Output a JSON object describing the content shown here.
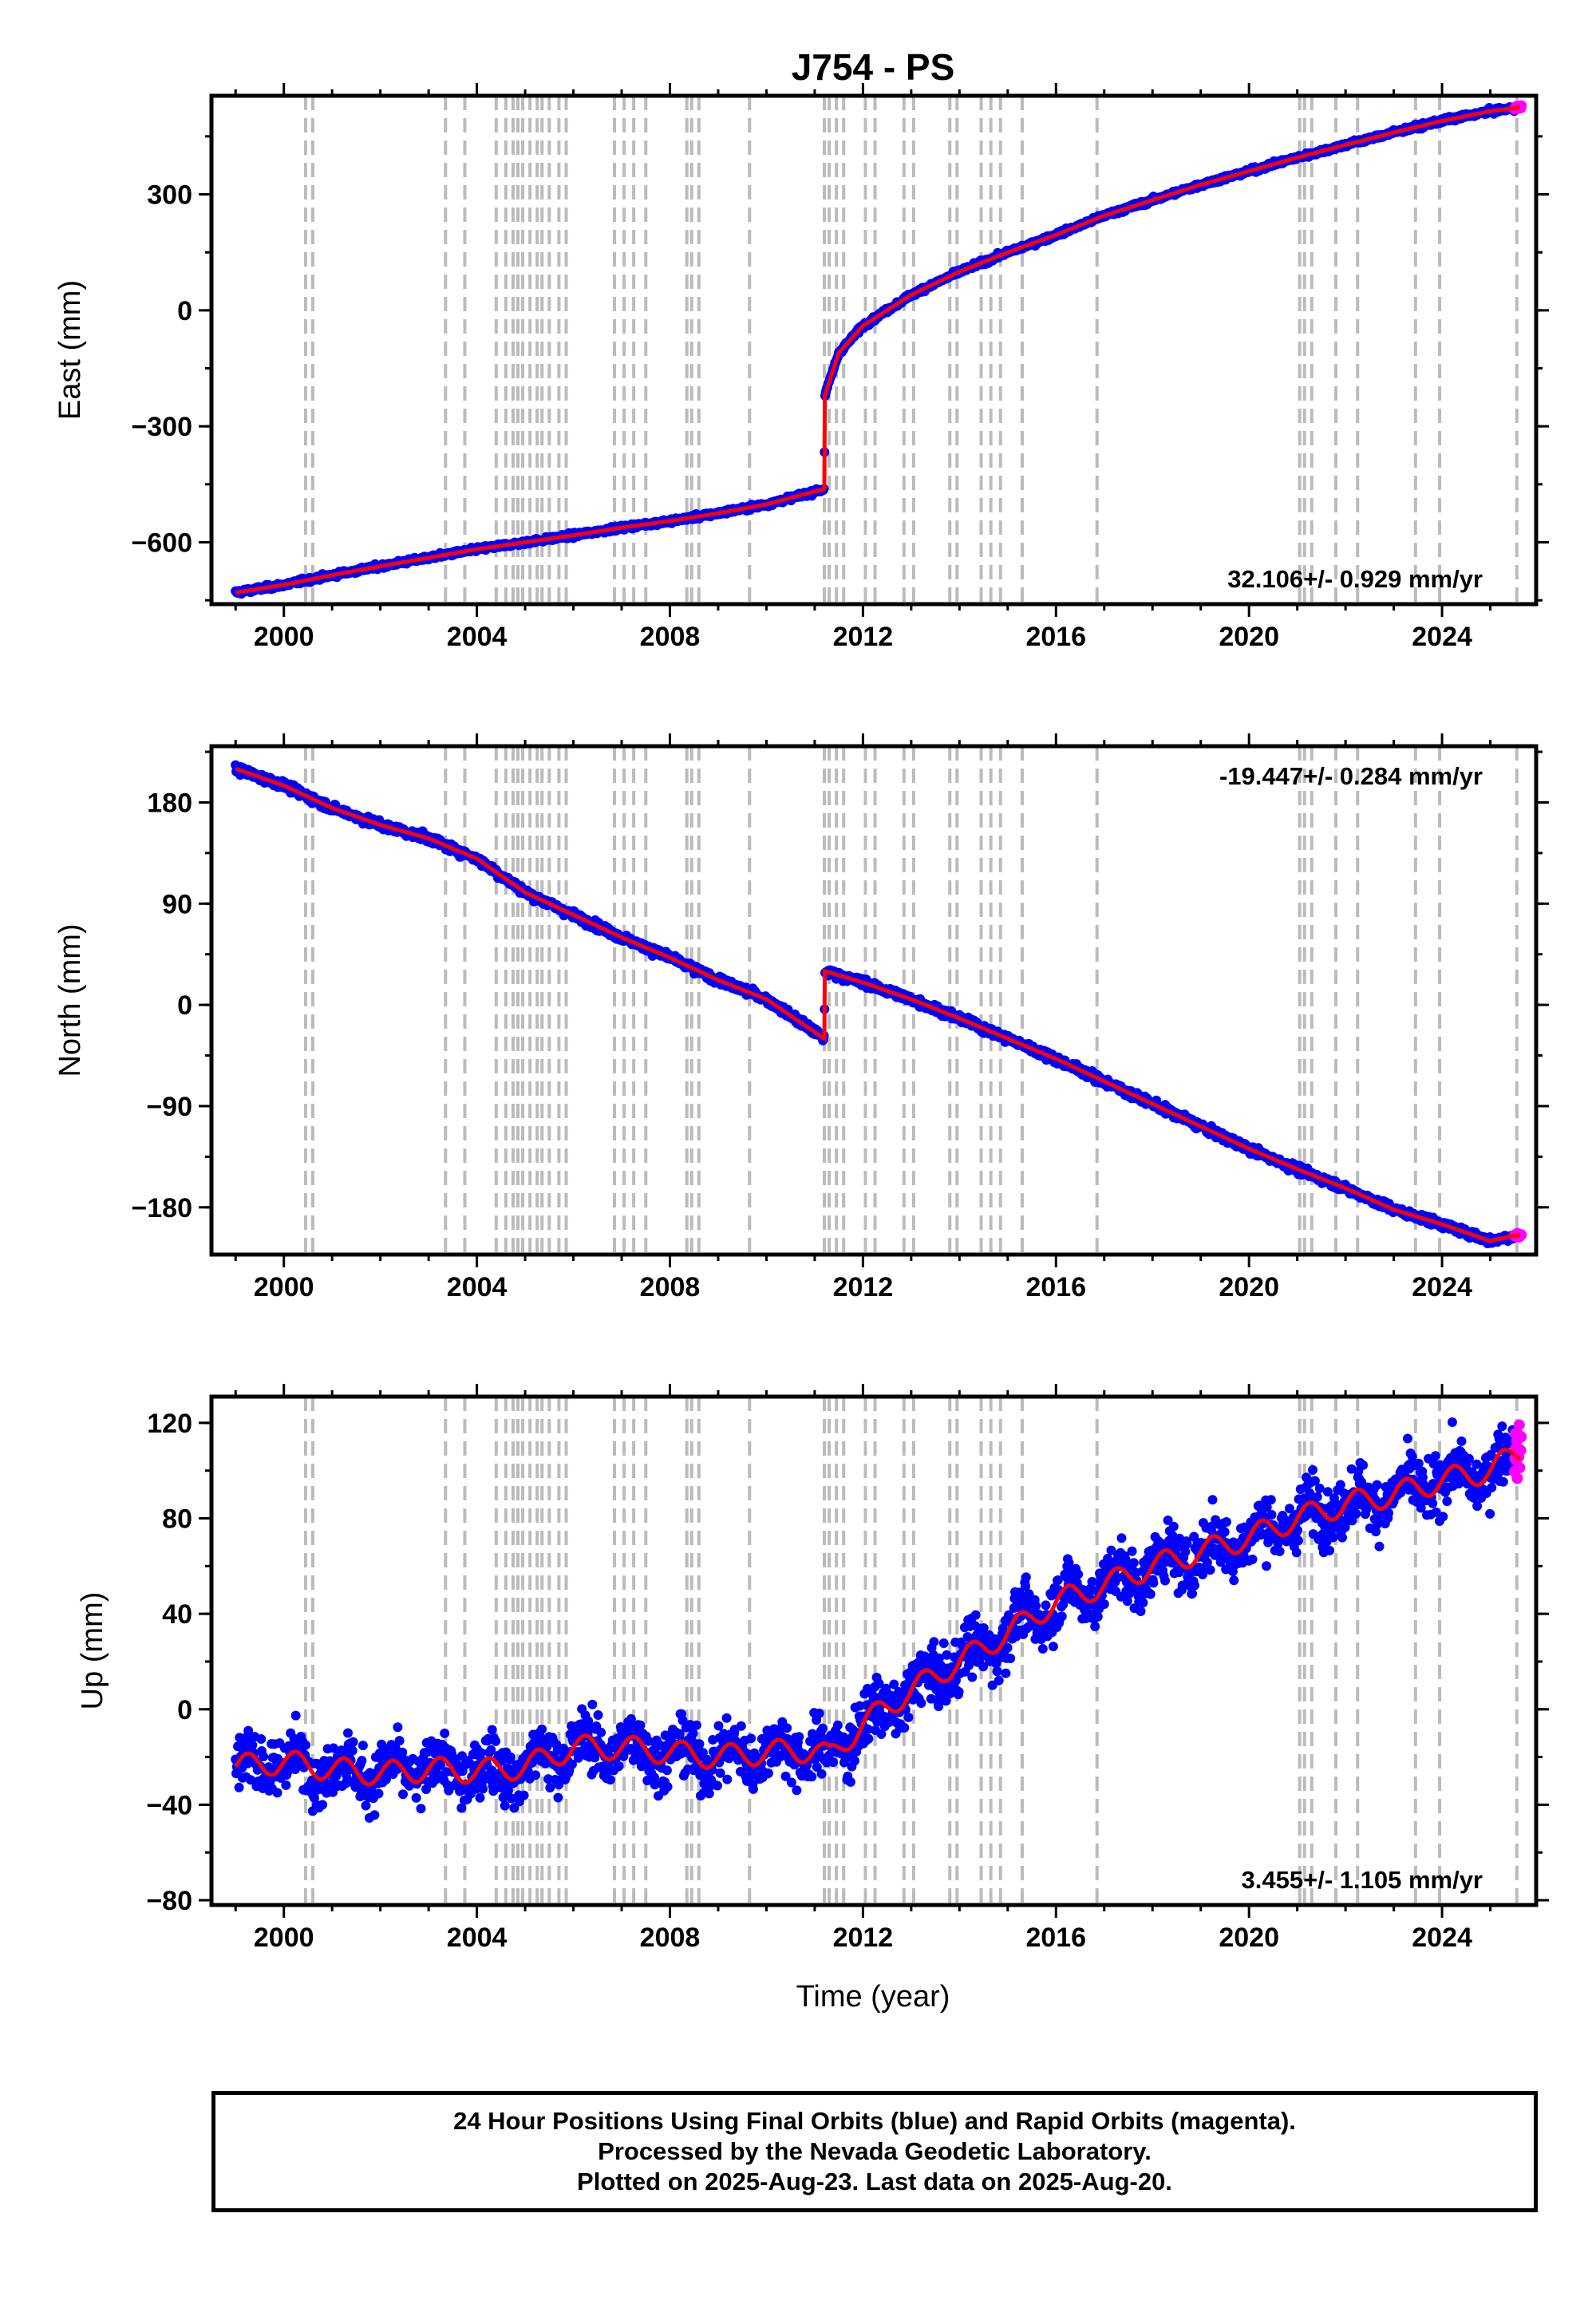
{
  "chart_data": {
    "type": "scatter",
    "title": "J754 - PS",
    "xlabel": "Time (year)",
    "xlim": [
      1998.5,
      2025.95
    ],
    "x_ticks": [
      "2000",
      "2004",
      "2008",
      "2012",
      "2016",
      "2020",
      "2024"
    ],
    "grid": false,
    "colors": {
      "final": "#0000ff",
      "rapid": "#ff00ff",
      "model": "#ff0000",
      "breaks": "#bbbbbb"
    },
    "break_years": [
      2000.45,
      2000.6,
      2003.35,
      2003.75,
      2004.4,
      2004.6,
      2004.75,
      2004.85,
      2004.95,
      2005.1,
      2005.25,
      2005.35,
      2005.5,
      2005.7,
      2005.85,
      2006.85,
      2007.05,
      2007.25,
      2007.5,
      2008.35,
      2008.45,
      2008.6,
      2009.65,
      2011.2,
      2011.3,
      2011.45,
      2011.6,
      2012.05,
      2012.25,
      2012.85,
      2013.05,
      2013.8,
      2013.95,
      2014.45,
      2014.65,
      2014.85,
      2015.3,
      2016.85,
      2021.05,
      2021.15,
      2021.3,
      2021.8,
      2022.25,
      2023.45,
      2023.95,
      2025.55
    ],
    "panels": [
      {
        "name": "east",
        "ylabel": "East (mm)",
        "ylim": [
          -760,
          555
        ],
        "y_ticks": [
          "300",
          "0",
          "−300",
          "−600"
        ],
        "y_tick_values": [
          300,
          0,
          -300,
          -600
        ],
        "rate": "32.106+/- 0.929 mm/yr",
        "noise_mm": 5,
        "trend": [
          [
            1999.0,
            -730
          ],
          [
            2000.0,
            -710
          ],
          [
            2001.0,
            -685
          ],
          [
            2002.0,
            -662
          ],
          [
            2003.0,
            -640
          ],
          [
            2004.0,
            -618
          ],
          [
            2005.0,
            -600
          ],
          [
            2006.0,
            -582
          ],
          [
            2007.0,
            -562
          ],
          [
            2008.0,
            -545
          ],
          [
            2009.0,
            -525
          ],
          [
            2010.0,
            -502
          ],
          [
            2011.2,
            -462
          ],
          [
            2011.21,
            -220
          ],
          [
            2011.5,
            -110
          ],
          [
            2012.0,
            -40
          ],
          [
            2013.0,
            40
          ],
          [
            2014.0,
            100
          ],
          [
            2015.0,
            150
          ],
          [
            2016.0,
            195
          ],
          [
            2017.0,
            245
          ],
          [
            2018.0,
            285
          ],
          [
            2019.0,
            325
          ],
          [
            2020.0,
            360
          ],
          [
            2021.0,
            395
          ],
          [
            2022.0,
            428
          ],
          [
            2023.0,
            460
          ],
          [
            2024.0,
            490
          ],
          [
            2025.0,
            515
          ],
          [
            2025.6,
            525
          ]
        ]
      },
      {
        "name": "north",
        "ylabel": "North (mm)",
        "ylim": [
          -222,
          230
        ],
        "y_ticks": [
          "180",
          "90",
          "0",
          "−90",
          "−180"
        ],
        "y_tick_values": [
          180,
          90,
          0,
          -90,
          -180
        ],
        "rate": "-19.447+/- 0.284 mm/yr",
        "noise_mm": 3,
        "trend": [
          [
            1999.0,
            210
          ],
          [
            2000.0,
            195
          ],
          [
            2001.0,
            175
          ],
          [
            2002.0,
            160
          ],
          [
            2003.0,
            148
          ],
          [
            2004.0,
            130
          ],
          [
            2005.0,
            100
          ],
          [
            2006.0,
            80
          ],
          [
            2007.0,
            60
          ],
          [
            2008.0,
            42
          ],
          [
            2009.0,
            22
          ],
          [
            2010.0,
            5
          ],
          [
            2011.2,
            -30
          ],
          [
            2011.21,
            30
          ],
          [
            2012.0,
            20
          ],
          [
            2013.0,
            5
          ],
          [
            2014.0,
            -12
          ],
          [
            2015.0,
            -30
          ],
          [
            2016.0,
            -48
          ],
          [
            2017.0,
            -68
          ],
          [
            2018.0,
            -88
          ],
          [
            2019.0,
            -108
          ],
          [
            2020.0,
            -128
          ],
          [
            2021.0,
            -146
          ],
          [
            2022.0,
            -163
          ],
          [
            2023.0,
            -182
          ],
          [
            2024.0,
            -195
          ],
          [
            2025.0,
            -210
          ],
          [
            2025.5,
            -205
          ]
        ]
      },
      {
        "name": "up",
        "ylabel": "Up (mm)",
        "ylim": [
          -82,
          131
        ],
        "y_ticks": [
          "120",
          "80",
          "40",
          "0",
          "−40",
          "−80"
        ],
        "y_tick_values": [
          120,
          80,
          40,
          0,
          -40,
          -80
        ],
        "rate": "3.455+/- 1.105 mm/yr",
        "noise_mm": 10,
        "seasonal_mm": 5,
        "trend": [
          [
            1999.0,
            -24
          ],
          [
            2000.0,
            -22
          ],
          [
            2001.0,
            -25
          ],
          [
            2002.0,
            -27
          ],
          [
            2003.0,
            -25
          ],
          [
            2004.0,
            -26
          ],
          [
            2005.0,
            -24
          ],
          [
            2006.0,
            -16
          ],
          [
            2007.0,
            -16
          ],
          [
            2008.0,
            -18
          ],
          [
            2009.0,
            -20
          ],
          [
            2010.0,
            -18
          ],
          [
            2011.0,
            -17
          ],
          [
            2011.3,
            -20
          ],
          [
            2012.0,
            -6
          ],
          [
            2013.0,
            8
          ],
          [
            2014.0,
            20
          ],
          [
            2015.0,
            32
          ],
          [
            2016.0,
            45
          ],
          [
            2017.0,
            52
          ],
          [
            2018.0,
            60
          ],
          [
            2019.0,
            66
          ],
          [
            2020.0,
            72
          ],
          [
            2021.0,
            80
          ],
          [
            2022.0,
            86
          ],
          [
            2023.0,
            90
          ],
          [
            2024.0,
            96
          ],
          [
            2025.0,
            100
          ],
          [
            2025.6,
            108
          ]
        ]
      }
    ]
  },
  "caption": {
    "line1": "24 Hour Positions Using Final Orbits (blue) and Rapid Orbits (magenta).",
    "line2": "Processed by the Nevada Geodetic Laboratory.",
    "line3": "Plotted on 2025-Aug-23. Last data on 2025-Aug-20."
  }
}
